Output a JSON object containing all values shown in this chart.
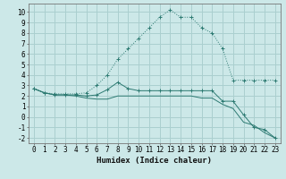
{
  "background_color": "#cce8e8",
  "grid_color": "#aacfcf",
  "line_color": "#2d7a72",
  "xlabel": "Humidex (Indice chaleur)",
  "xlabel_fontsize": 6.5,
  "tick_fontsize": 5.5,
  "xlim": [
    -0.5,
    23.5
  ],
  "ylim": [
    -2.5,
    10.8
  ],
  "yticks": [
    -2,
    -1,
    0,
    1,
    2,
    3,
    4,
    5,
    6,
    7,
    8,
    9,
    10
  ],
  "xticks": [
    0,
    1,
    2,
    3,
    4,
    5,
    6,
    7,
    8,
    9,
    10,
    11,
    12,
    13,
    14,
    15,
    16,
    17,
    18,
    19,
    20,
    21,
    22,
    23
  ],
  "series1_x": [
    0,
    1,
    2,
    3,
    4,
    5,
    6,
    7,
    8,
    9,
    10,
    11,
    12,
    13,
    14,
    15,
    16,
    17,
    18,
    19,
    20,
    21,
    22,
    23
  ],
  "series1_y": [
    2.7,
    2.3,
    2.2,
    2.2,
    2.2,
    2.3,
    3.0,
    4.0,
    5.5,
    6.5,
    7.5,
    8.5,
    9.5,
    10.2,
    9.5,
    9.5,
    8.5,
    8.0,
    6.5,
    3.5,
    3.5,
    3.5,
    3.5,
    3.5
  ],
  "series2_x": [
    0,
    1,
    2,
    3,
    4,
    5,
    6,
    7,
    8,
    9,
    10,
    11,
    12,
    13,
    14,
    15,
    16,
    17,
    18,
    19,
    20,
    21,
    22,
    23
  ],
  "series2_y": [
    2.7,
    2.3,
    2.1,
    2.1,
    2.1,
    2.0,
    2.1,
    2.6,
    3.3,
    2.7,
    2.5,
    2.5,
    2.5,
    2.5,
    2.5,
    2.5,
    2.5,
    2.5,
    1.5,
    1.5,
    0.2,
    -1.0,
    -1.2,
    -2.0
  ],
  "series3_x": [
    0,
    1,
    2,
    3,
    4,
    5,
    6,
    7,
    8,
    9,
    10,
    11,
    12,
    13,
    14,
    15,
    16,
    17,
    18,
    19,
    20,
    21,
    22,
    23
  ],
  "series3_y": [
    2.7,
    2.3,
    2.1,
    2.1,
    2.0,
    1.8,
    1.7,
    1.7,
    2.0,
    2.0,
    2.0,
    2.0,
    2.0,
    2.0,
    2.0,
    2.0,
    1.8,
    1.8,
    1.2,
    0.8,
    -0.5,
    -0.8,
    -1.5,
    -2.0
  ]
}
